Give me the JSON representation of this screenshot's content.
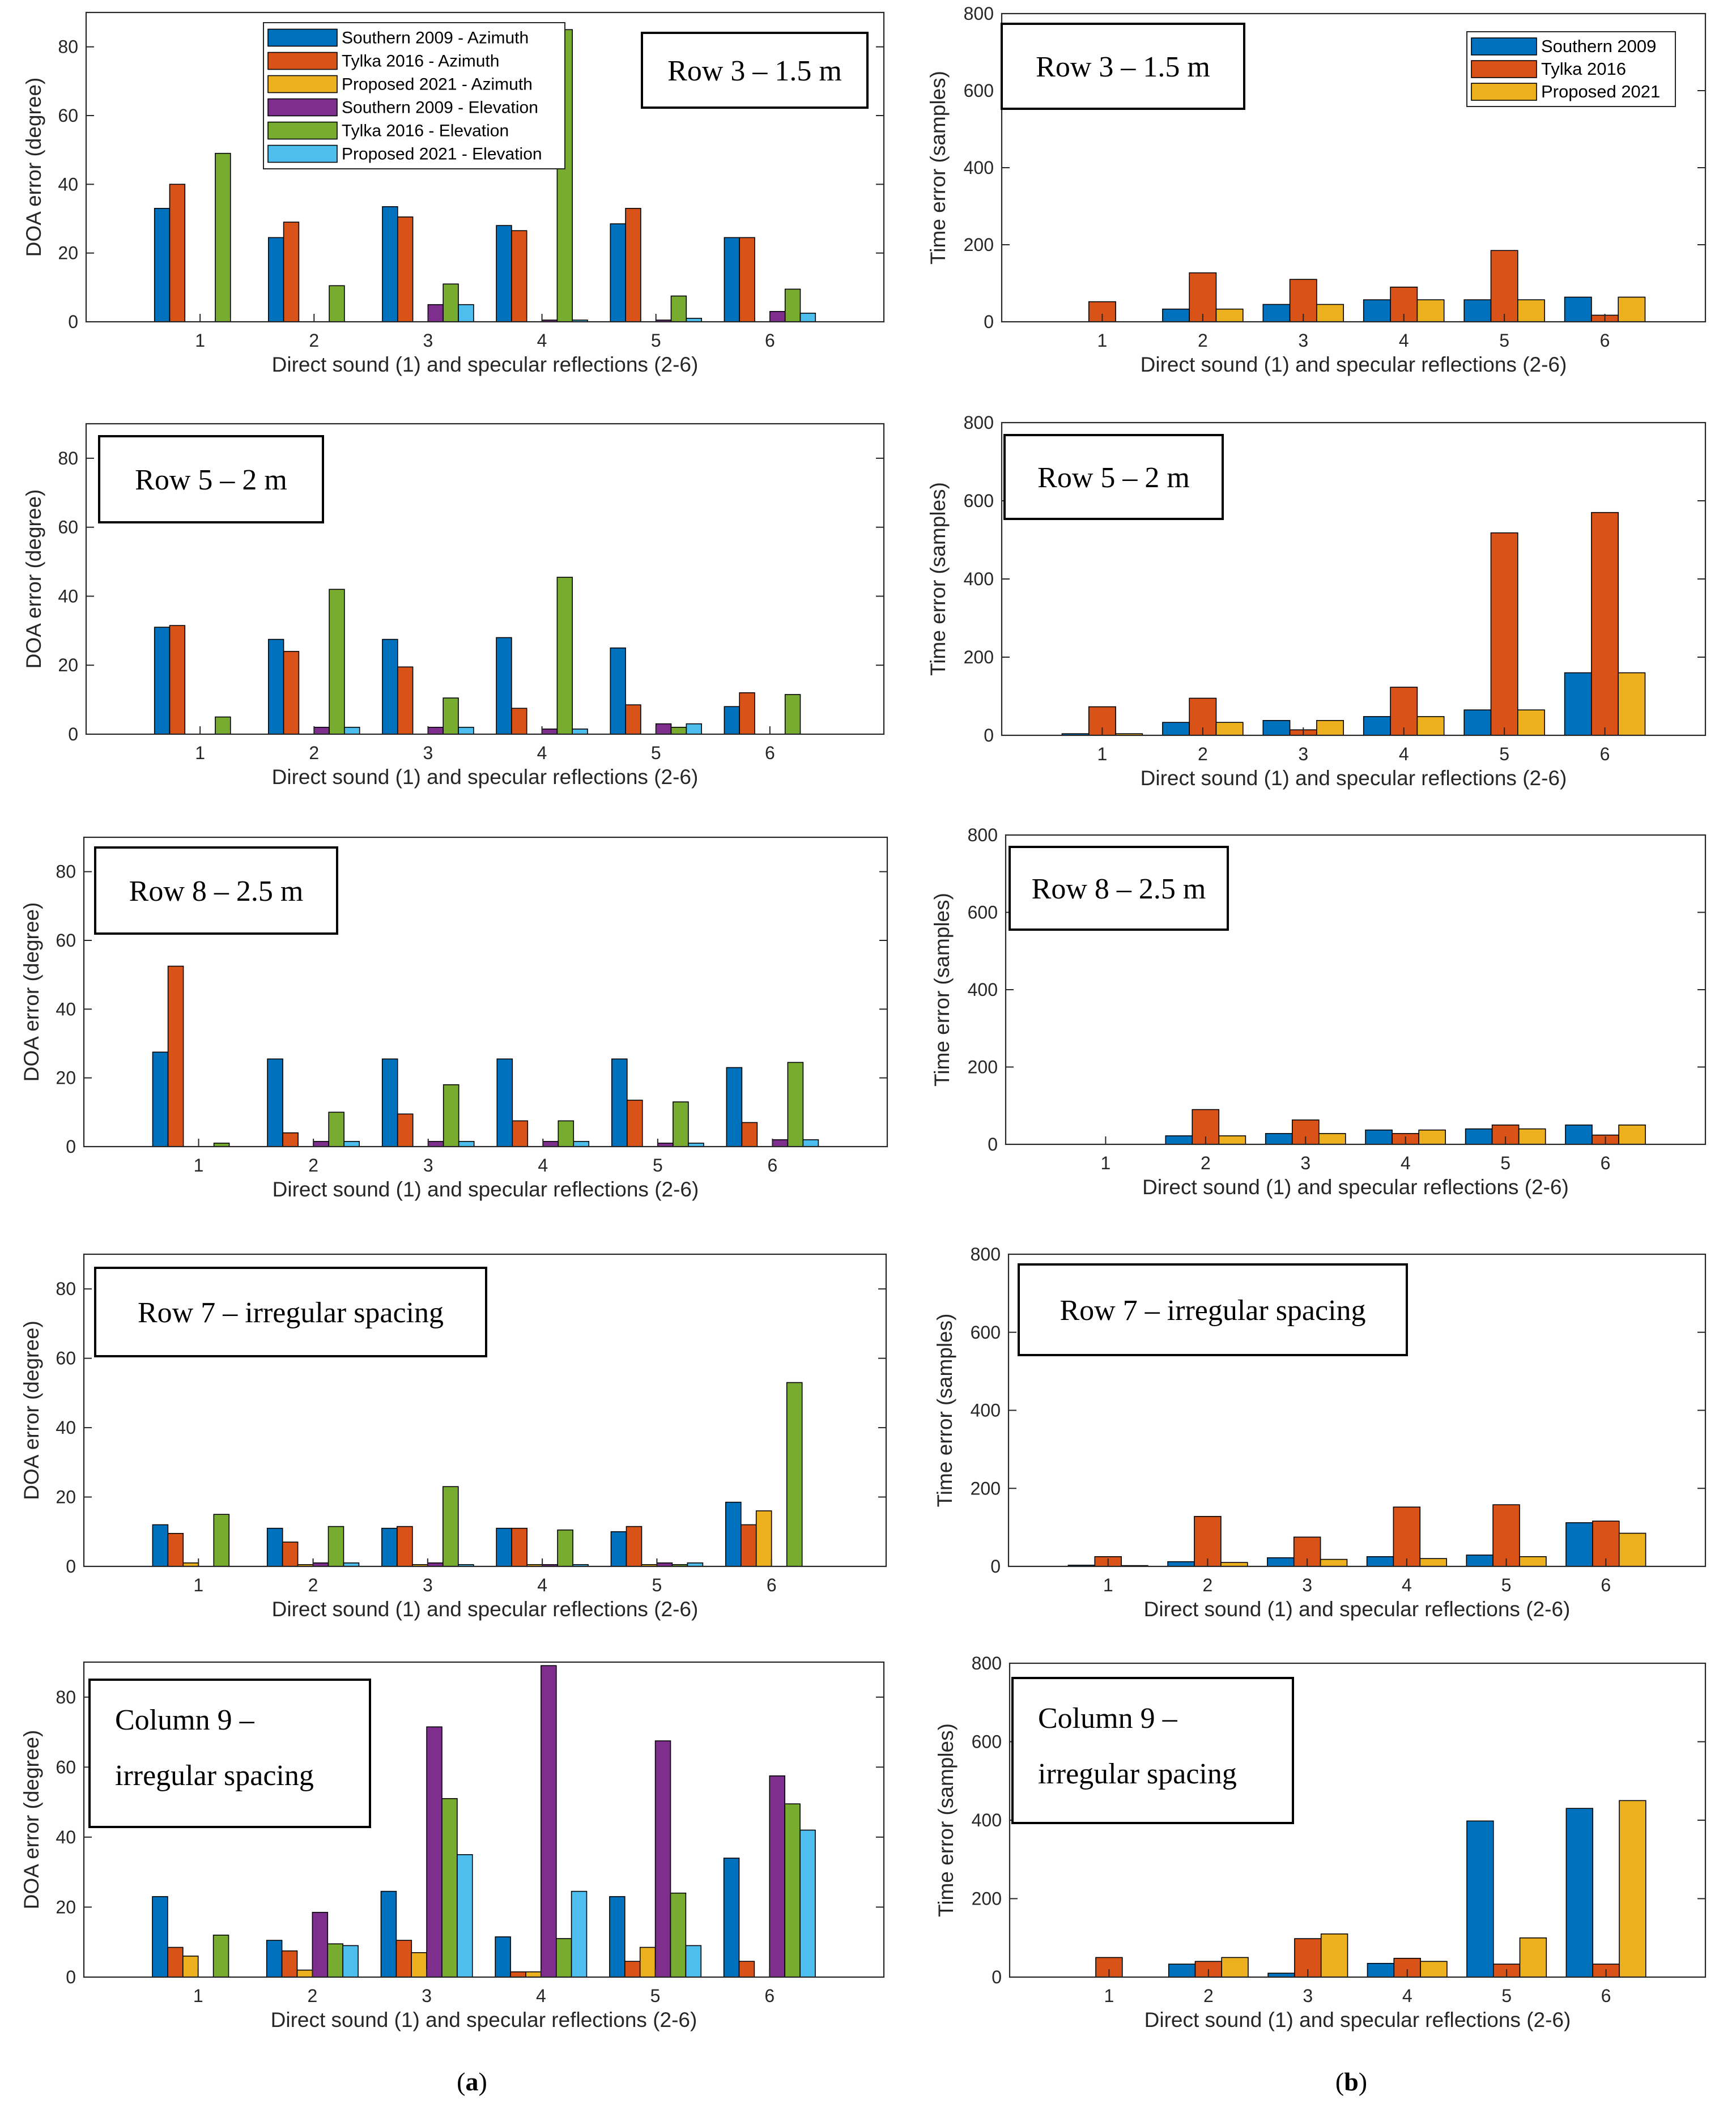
{
  "panel_labels": {
    "a_letter": "a",
    "b_letter": "b",
    "left_paren": "(",
    "right_paren": ")"
  },
  "colors": {
    "s09_az": "#0072BD",
    "t16_az": "#D95319",
    "p21_az": "#EDB120",
    "s09_el": "#7E2F8E",
    "t16_el": "#77AC30",
    "p21_el": "#4DBEEE"
  },
  "chart_data": [
    {
      "id": "a1",
      "type": "bar",
      "title": "Row 3 – 1.5 m",
      "xlabel": "Direct sound (1) and specular reflections (2-6)",
      "ylabel": "DOA error (degree)",
      "categories": [
        "1",
        "2",
        "3",
        "4",
        "5",
        "6"
      ],
      "ylim": [
        0,
        90
      ],
      "yticks": [
        "0",
        "20",
        "40",
        "60",
        "80"
      ],
      "legend": {
        "show": true,
        "position": "top-center"
      },
      "series": [
        {
          "name": "Southern 2009 - Azimuth",
          "values": [
            33,
            24.5,
            33.5,
            28,
            28.5,
            24.5
          ]
        },
        {
          "name": "Tylka 2016 - Azimuth",
          "values": [
            40,
            29,
            30.5,
            26.5,
            33,
            24.5
          ]
        },
        {
          "name": "Proposed 2021 - Azimuth",
          "values": [
            0,
            0,
            0,
            0,
            0,
            0
          ]
        },
        {
          "name": "Southern 2009 - Elevation",
          "values": [
            0,
            0,
            5,
            0.5,
            0.5,
            3
          ]
        },
        {
          "name": "Tylka 2016 - Elevation",
          "values": [
            49,
            10.5,
            11,
            85,
            7.5,
            9.5
          ]
        },
        {
          "name": "Proposed 2021 - Elevation",
          "values": [
            0,
            0,
            5,
            0.5,
            1,
            2.5
          ]
        }
      ]
    },
    {
      "id": "b1",
      "type": "bar",
      "title": "Row 3 – 1.5 m",
      "xlabel": "Direct sound (1) and specular reflections (2-6)",
      "ylabel": "Time error (samples)",
      "categories": [
        "1",
        "2",
        "3",
        "4",
        "5",
        "6"
      ],
      "ylim": [
        0,
        800
      ],
      "yticks": [
        "0",
        "200",
        "400",
        "600",
        "800"
      ],
      "legend": {
        "show": true,
        "position": "top-right"
      },
      "series": [
        {
          "name": "Southern 2009",
          "values": [
            0,
            33,
            45,
            57,
            57,
            64
          ]
        },
        {
          "name": "Tylka 2016",
          "values": [
            52,
            127,
            110,
            90,
            185,
            17
          ]
        },
        {
          "name": "Proposed 2021",
          "values": [
            0,
            33,
            45,
            57,
            57,
            64
          ]
        }
      ]
    },
    {
      "id": "a2",
      "type": "bar",
      "title": "Row 5 – 2 m",
      "xlabel": "Direct sound (1) and specular reflections (2-6)",
      "ylabel": "DOA error (degree)",
      "categories": [
        "1",
        "2",
        "3",
        "4",
        "5",
        "6"
      ],
      "ylim": [
        0,
        90
      ],
      "yticks": [
        "0",
        "20",
        "40",
        "60",
        "80"
      ],
      "legend": {
        "show": false
      },
      "series": [
        {
          "name": "Southern 2009 - Azimuth",
          "values": [
            31,
            27.5,
            27.5,
            28,
            25,
            8
          ]
        },
        {
          "name": "Tylka 2016 - Azimuth",
          "values": [
            31.5,
            24,
            19.5,
            7.5,
            8.5,
            12
          ]
        },
        {
          "name": "Proposed 2021 - Azimuth",
          "values": [
            0,
            0,
            0,
            0,
            0,
            0
          ]
        },
        {
          "name": "Southern 2009 - Elevation",
          "values": [
            0,
            2,
            2,
            1.5,
            3,
            0
          ]
        },
        {
          "name": "Tylka 2016 - Elevation",
          "values": [
            5,
            42,
            10.5,
            45.5,
            2,
            11.5
          ]
        },
        {
          "name": "Proposed 2021 - Elevation",
          "values": [
            0,
            2,
            2,
            1.5,
            3,
            0
          ]
        }
      ]
    },
    {
      "id": "b2",
      "type": "bar",
      "title": "Row 5 – 2 m",
      "xlabel": "Direct sound (1) and specular reflections (2-6)",
      "ylabel": "Time error (samples)",
      "categories": [
        "1",
        "2",
        "3",
        "4",
        "5",
        "6"
      ],
      "ylim": [
        0,
        800
      ],
      "yticks": [
        "0",
        "200",
        "400",
        "600",
        "800"
      ],
      "legend": {
        "show": false
      },
      "series": [
        {
          "name": "Southern 2009",
          "values": [
            4,
            33,
            38,
            48,
            65,
            160
          ]
        },
        {
          "name": "Tylka 2016",
          "values": [
            73,
            95,
            14,
            123,
            518,
            570
          ]
        },
        {
          "name": "Proposed 2021",
          "values": [
            4,
            33,
            38,
            48,
            65,
            160
          ]
        }
      ]
    },
    {
      "id": "a3",
      "type": "bar",
      "title": "Row 8 – 2.5 m",
      "xlabel": "Direct sound (1) and specular reflections (2-6)",
      "ylabel": "DOA error (degree)",
      "categories": [
        "1",
        "2",
        "3",
        "4",
        "5",
        "6"
      ],
      "ylim": [
        0,
        90
      ],
      "yticks": [
        "0",
        "20",
        "40",
        "60",
        "80"
      ],
      "legend": {
        "show": false
      },
      "series": [
        {
          "name": "Southern 2009 - Azimuth",
          "values": [
            27.5,
            25.5,
            25.5,
            25.5,
            25.5,
            23
          ]
        },
        {
          "name": "Tylka 2016 - Azimuth",
          "values": [
            52.5,
            4,
            9.5,
            7.5,
            13.5,
            7
          ]
        },
        {
          "name": "Proposed 2021 - Azimuth",
          "values": [
            0,
            0,
            0,
            0,
            0,
            0
          ]
        },
        {
          "name": "Southern 2009 - Elevation",
          "values": [
            0,
            1.5,
            1.5,
            1.5,
            1,
            2
          ]
        },
        {
          "name": "Tylka 2016 - Elevation",
          "values": [
            1,
            10,
            18,
            7.5,
            13,
            24.5
          ]
        },
        {
          "name": "Proposed 2021 - Elevation",
          "values": [
            0,
            1.5,
            1.5,
            1.5,
            1,
            2
          ]
        }
      ]
    },
    {
      "id": "b3",
      "type": "bar",
      "title": "Row 8 – 2.5 m",
      "xlabel": "Direct sound (1) and specular reflections (2-6)",
      "ylabel": "Time error (samples)",
      "categories": [
        "1",
        "2",
        "3",
        "4",
        "5",
        "6"
      ],
      "ylim": [
        0,
        800
      ],
      "yticks": [
        "0",
        "200",
        "400",
        "600",
        "800"
      ],
      "legend": {
        "show": false
      },
      "series": [
        {
          "name": "Southern 2009",
          "values": [
            0,
            22,
            28,
            37,
            40,
            50
          ]
        },
        {
          "name": "Tylka 2016",
          "values": [
            0,
            90,
            63,
            28,
            50,
            24
          ]
        },
        {
          "name": "Proposed 2021",
          "values": [
            0,
            22,
            28,
            37,
            40,
            50
          ]
        }
      ]
    },
    {
      "id": "a4",
      "type": "bar",
      "title": "Row 7 – irregular spacing",
      "xlabel": "Direct sound (1) and specular reflections (2-6)",
      "ylabel": "DOA error (degree)",
      "categories": [
        "1",
        "2",
        "3",
        "4",
        "5",
        "6"
      ],
      "ylim": [
        0,
        90
      ],
      "yticks": [
        "0",
        "20",
        "40",
        "60",
        "80"
      ],
      "legend": {
        "show": false
      },
      "series": [
        {
          "name": "Southern 2009 - Azimuth",
          "values": [
            12,
            11,
            11,
            11,
            10,
            18.5
          ]
        },
        {
          "name": "Tylka 2016 - Azimuth",
          "values": [
            9.5,
            7,
            11.5,
            11,
            11.5,
            12
          ]
        },
        {
          "name": "Proposed 2021 - Azimuth",
          "values": [
            1,
            0.5,
            0.5,
            0.5,
            0.5,
            16
          ]
        },
        {
          "name": "Southern 2009 - Elevation",
          "values": [
            0,
            1,
            1,
            0.5,
            1,
            0
          ]
        },
        {
          "name": "Tylka 2016 - Elevation",
          "values": [
            15,
            11.5,
            23,
            10.5,
            0.5,
            53
          ]
        },
        {
          "name": "Proposed 2021 - Elevation",
          "values": [
            0,
            1,
            0.5,
            0.5,
            1,
            0
          ]
        }
      ]
    },
    {
      "id": "b4",
      "type": "bar",
      "title": "Row 7 – irregular spacing",
      "xlabel": "Direct sound (1) and specular reflections (2-6)",
      "ylabel": "Time error (samples)",
      "categories": [
        "1",
        "2",
        "3",
        "4",
        "5",
        "6"
      ],
      "ylim": [
        0,
        800
      ],
      "yticks": [
        "0",
        "200",
        "400",
        "600",
        "800"
      ],
      "legend": {
        "show": false
      },
      "series": [
        {
          "name": "Southern 2009",
          "values": [
            3,
            12,
            22,
            25,
            29,
            112
          ]
        },
        {
          "name": "Tylka 2016",
          "values": [
            25,
            128,
            75,
            152,
            158,
            116
          ]
        },
        {
          "name": "Proposed 2021",
          "values": [
            2,
            10,
            18,
            20,
            25,
            85
          ]
        }
      ]
    },
    {
      "id": "a5",
      "type": "bar",
      "title": "Column 9 – irregular spacing",
      "title_lines": [
        "Column 9 –",
        "irregular spacing"
      ],
      "xlabel": "Direct sound (1) and specular reflections (2-6)",
      "ylabel": "DOA error (degree)",
      "categories": [
        "1",
        "2",
        "3",
        "4",
        "5",
        "6"
      ],
      "ylim": [
        0,
        90
      ],
      "yticks": [
        "0",
        "20",
        "40",
        "60",
        "80"
      ],
      "legend": {
        "show": false
      },
      "series": [
        {
          "name": "Southern 2009 - Azimuth",
          "values": [
            23,
            10.5,
            24.5,
            11.5,
            23,
            34
          ]
        },
        {
          "name": "Tylka 2016 - Azimuth",
          "values": [
            8.5,
            7.5,
            10.5,
            1.5,
            4.5,
            4.5
          ]
        },
        {
          "name": "Proposed 2021 - Azimuth",
          "values": [
            6,
            2,
            7,
            1.5,
            8.5,
            0
          ]
        },
        {
          "name": "Southern 2009 - Elevation",
          "values": [
            0,
            18.5,
            71.5,
            89,
            67.5,
            57.5
          ]
        },
        {
          "name": "Tylka 2016 - Elevation",
          "values": [
            12,
            9.5,
            51,
            11,
            24,
            49.5
          ]
        },
        {
          "name": "Proposed 2021 - Elevation",
          "values": [
            0,
            9,
            35,
            24.5,
            9,
            42
          ]
        }
      ]
    },
    {
      "id": "b5",
      "type": "bar",
      "title": "Column 9 – irregular spacing",
      "title_lines": [
        "Column 9 –",
        "irregular spacing"
      ],
      "xlabel": "Direct sound (1) and specular reflections (2-6)",
      "ylabel": "Time error (samples)",
      "categories": [
        "1",
        "2",
        "3",
        "4",
        "5",
        "6"
      ],
      "ylim": [
        0,
        800
      ],
      "yticks": [
        "0",
        "200",
        "400",
        "600",
        "800"
      ],
      "legend": {
        "show": false
      },
      "series": [
        {
          "name": "Southern 2009",
          "values": [
            0,
            33,
            10,
            35,
            398,
            430
          ]
        },
        {
          "name": "Tylka 2016",
          "values": [
            50,
            40,
            98,
            48,
            33,
            33
          ]
        },
        {
          "name": "Proposed 2021",
          "values": [
            0,
            50,
            110,
            40,
            100,
            450
          ]
        }
      ]
    }
  ]
}
